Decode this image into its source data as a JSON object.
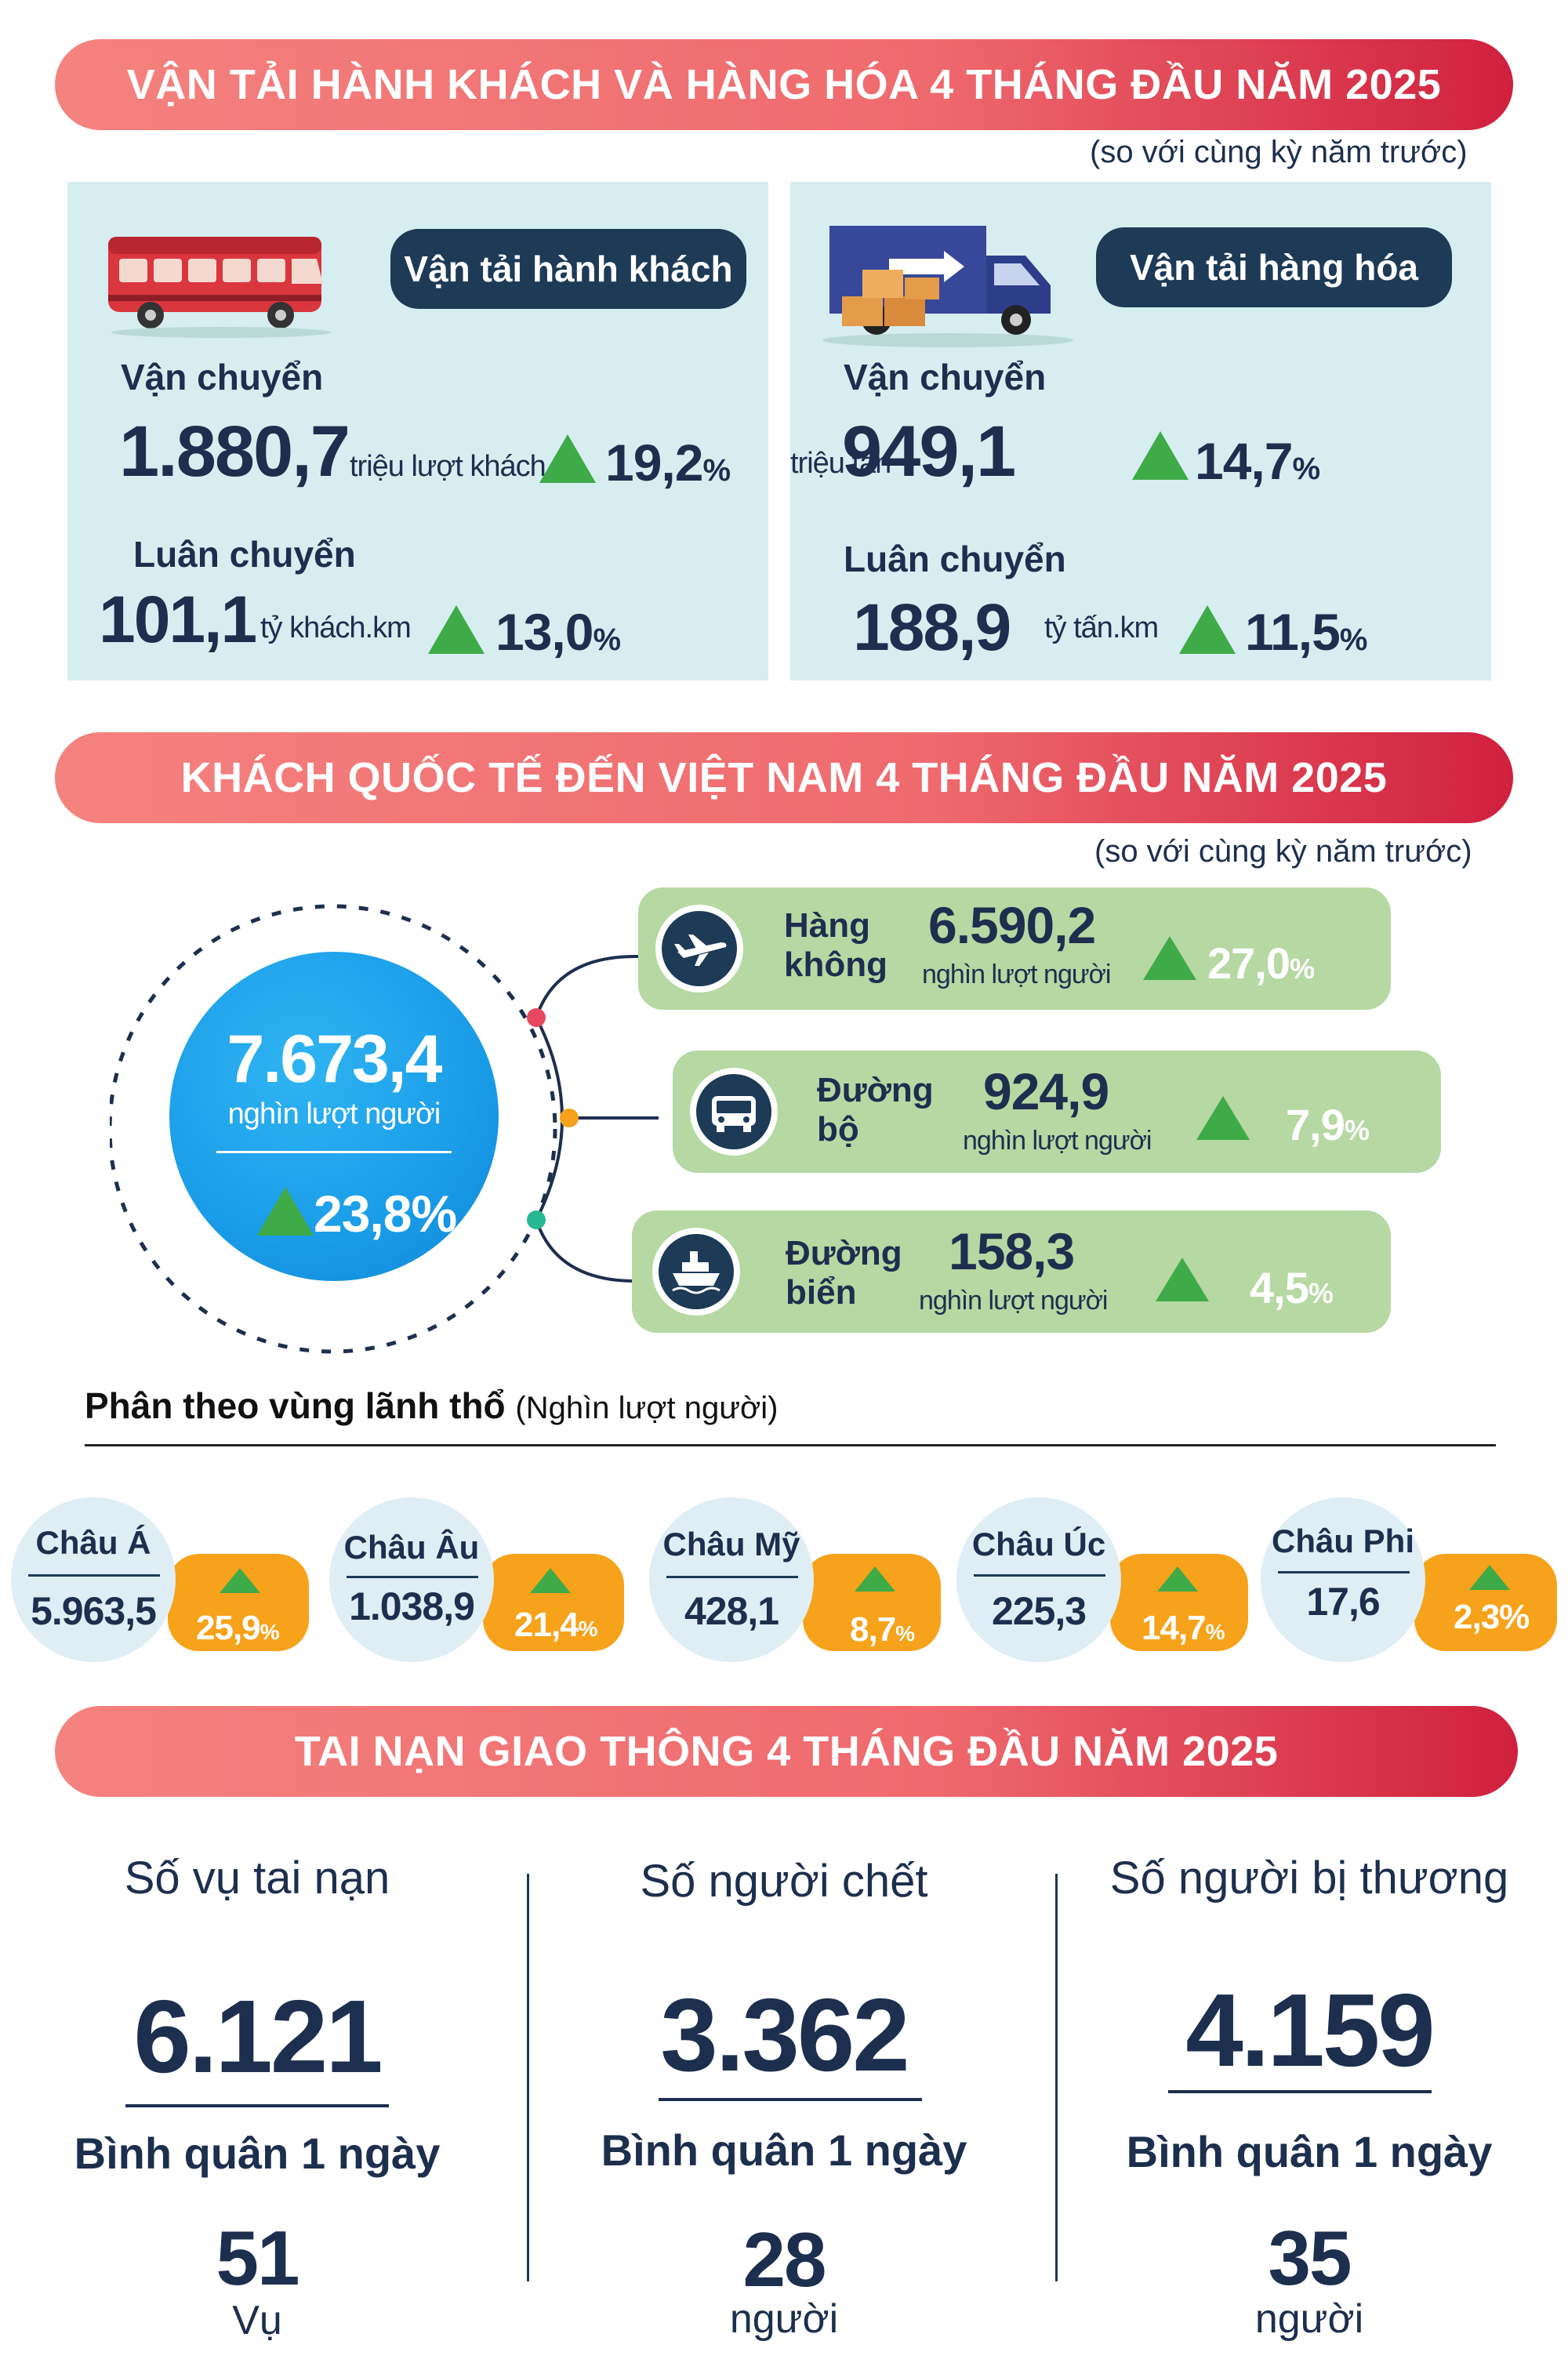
{
  "section1": {
    "title": "VẬN TẢI HÀNH KHÁCH VÀ HÀNG HÓA 4 THÁNG ĐẦU NĂM 2025",
    "note": "(so với cùng kỳ năm trước)",
    "passenger": {
      "pill": "Vận tải hành khách",
      "transport_label": "Vận chuyển",
      "transport_value": "1.880,7",
      "transport_unit": "triệu lượt khách",
      "transport_pct": "19,2",
      "rotation_label": "Luân chuyển",
      "rotation_value": "101,1",
      "rotation_unit": "tỷ khách.km",
      "rotation_pct": "13,0"
    },
    "cargo": {
      "pill": "Vận tải hàng hóa",
      "transport_label": "Vận chuyển",
      "transport_value": "949,1",
      "transport_unit": "triệu tấn",
      "transport_pct": "14,7",
      "rotation_label": "Luân chuyển",
      "rotation_value": "188,9",
      "rotation_unit": "tỷ tấn.km",
      "rotation_pct": "11,5"
    }
  },
  "section2": {
    "title": "KHÁCH QUỐC TẾ ĐẾN VIỆT NAM 4 THÁNG ĐẦU NĂM 2025",
    "note": "(so với cùng kỳ năm trước)",
    "total_value": "7.673,4",
    "total_unit": "nghìn lượt người",
    "total_pct": "23,8%",
    "modes": [
      {
        "title1": "Hàng",
        "title2": "không",
        "value": "6.590,2",
        "unit": "nghìn lượt người",
        "pct": "27,0"
      },
      {
        "title1": "Đường",
        "title2": "bộ",
        "value": "924,9",
        "unit": "nghìn lượt người",
        "pct": "7,9"
      },
      {
        "title1": "Đường",
        "title2": "biển",
        "value": "158,3",
        "unit": "nghìn lượt người",
        "pct": "4,5"
      }
    ],
    "percent_sign": "%",
    "region_heading": "Phân theo vùng lãnh thổ",
    "region_heading_unit": "(Nghìn lượt người)",
    "regions": [
      {
        "name": "Châu Á",
        "value": "5.963,5",
        "pct": "25,9"
      },
      {
        "name": "Châu Âu",
        "value": "1.038,9",
        "pct": "21,4"
      },
      {
        "name": "Châu Mỹ",
        "value": "428,1",
        "pct": "8,7"
      },
      {
        "name": "Châu Úc",
        "value": "225,3",
        "pct": "14,7"
      },
      {
        "name": "Châu Phi",
        "value": "17,6",
        "pct": "2,3%"
      }
    ]
  },
  "section3": {
    "title": "TAI NẠN GIAO THÔNG 4 THÁNG ĐẦU NĂM 2025",
    "columns": [
      {
        "title": "Số vụ tai nạn",
        "value": "6.121",
        "sub": "Bình quân 1 ngày",
        "avg": "51",
        "unit": "Vụ"
      },
      {
        "title": "Số người chết",
        "value": "3.362",
        "sub": "Bình quân 1 ngày",
        "avg": "28",
        "unit": "người"
      },
      {
        "title": "Số người bị thương",
        "value": "4.159",
        "sub": "Bình quân 1 ngày",
        "avg": "35",
        "unit": "người"
      }
    ]
  },
  "colors": {
    "banner_start": "#f4827f",
    "banner_end": "#d0203e",
    "navy": "#1d3a57",
    "panel": "#d7eef0",
    "card": "#b6d8a3",
    "up_arrow": "#3faa48",
    "orange": "#f7a21b",
    "globe": "#1a9ce8"
  }
}
